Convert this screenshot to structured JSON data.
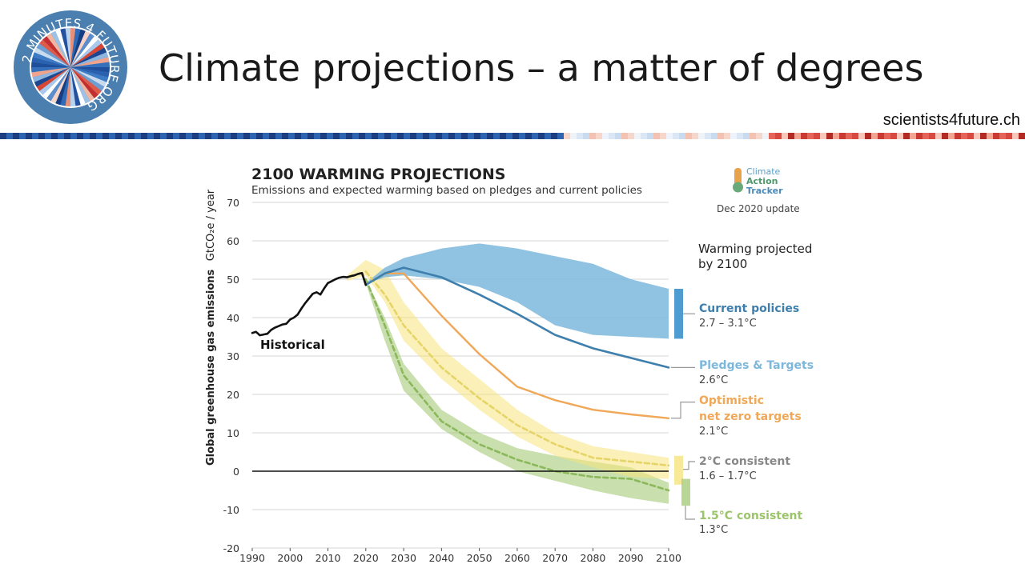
{
  "slide": {
    "title": "Climate projections – a matter of degrees",
    "site": "scientists4future.ch",
    "logo_text": "2 MINUTES 4 FUTURE.ORG"
  },
  "colors": {
    "historical": "#111111",
    "current": "#3e7fad",
    "pledges": "#7db7dc",
    "optimistic": "#f0a858",
    "two_deg": "#f5e47d",
    "two_deg_line": "#e9d86a",
    "one_five": "#9cc46a",
    "label_grey": "#888888",
    "label_dark": "#333333"
  },
  "chart_data": {
    "type": "area",
    "title": "2100 WARMING PROJECTIONS",
    "subtitle": "Emissions and expected warming based on pledges and current policies",
    "brand": [
      "Climate",
      "Action",
      "Tracker"
    ],
    "update": "Dec 2020 update",
    "ylabel": "Global greenhouse gas emissions",
    "yunit": "GtCO₂e / year",
    "xlim": [
      1990,
      2100
    ],
    "ylim": [
      -20,
      70
    ],
    "xticks": [
      1990,
      2000,
      2010,
      2020,
      2030,
      2040,
      2050,
      2060,
      2070,
      2080,
      2090,
      2100
    ],
    "yticks": [
      70,
      60,
      50,
      40,
      30,
      20,
      10,
      0,
      -10,
      -20
    ],
    "grid": true,
    "legend_title": "Warming projected by 2100",
    "historical": {
      "name": "Historical",
      "x": [
        1990,
        1991,
        1992,
        1993,
        1994,
        1995,
        1996,
        1997,
        1998,
        1999,
        2000,
        2001,
        2002,
        2003,
        2004,
        2005,
        2006,
        2007,
        2008,
        2009,
        2010,
        2011,
        2012,
        2013,
        2014,
        2015,
        2016,
        2017,
        2018,
        2019,
        2020
      ],
      "y": [
        36,
        36.3,
        35.4,
        35.6,
        35.8,
        36.8,
        37.4,
        37.8,
        38.2,
        38.4,
        39.5,
        40.0,
        40.8,
        42.4,
        43.8,
        45.0,
        46.2,
        46.6,
        46.0,
        47.6,
        49.0,
        49.5,
        50.0,
        50.4,
        50.6,
        50.5,
        50.8,
        51.0,
        51.4,
        51.6,
        48.5
      ]
    },
    "current_policies": {
      "name": "Current policies",
      "range": "2.7 – 3.1°C",
      "upper": {
        "x": [
          2020,
          2025,
          2030,
          2040,
          2050,
          2060,
          2070,
          2080,
          2090,
          2100
        ],
        "y": [
          49,
          53,
          55.5,
          58,
          59.3,
          58,
          56,
          54,
          50,
          47.5
        ]
      },
      "lower": {
        "x": [
          2020,
          2025,
          2030,
          2040,
          2050,
          2060,
          2070,
          2080,
          2090,
          2100
        ],
        "y": [
          48.8,
          50.5,
          51,
          50,
          48,
          44,
          38,
          35.5,
          35,
          34.5
        ]
      }
    },
    "pledges_targets": {
      "name": "Pledges & Targets",
      "range": "2.6°C",
      "x": [
        2020,
        2025,
        2030,
        2040,
        2050,
        2060,
        2070,
        2080,
        2090,
        2100
      ],
      "y": [
        48.5,
        51.5,
        53,
        50.5,
        46,
        41,
        35.5,
        32,
        29.5,
        27
      ]
    },
    "optimistic_net_zero": {
      "name": "Optimistic net zero targets",
      "range": "2.1°C",
      "x": [
        2020,
        2025,
        2030,
        2035,
        2040,
        2050,
        2060,
        2070,
        2080,
        2090,
        2100
      ],
      "y": [
        48.5,
        51.5,
        51.5,
        46,
        40.5,
        30.5,
        22,
        18.5,
        16,
        14.8,
        13.8
      ]
    },
    "two_degree": {
      "name": "2°C consistent",
      "range": "1.6 – 1.7°C",
      "upper": {
        "x": [
          2015,
          2020,
          2025,
          2030,
          2040,
          2050,
          2060,
          2070,
          2080,
          2090,
          2100
        ],
        "y": [
          51,
          55,
          52.5,
          44,
          32,
          24,
          16,
          10,
          6.5,
          5,
          3.5
        ]
      },
      "lower": {
        "x": [
          2015,
          2020,
          2025,
          2030,
          2040,
          2050,
          2060,
          2070,
          2080,
          2090,
          2100
        ],
        "y": [
          49.5,
          51,
          44,
          34,
          24,
          16,
          9,
          4,
          1,
          -1.5,
          -2
        ]
      },
      "median": {
        "x": [
          2020,
          2025,
          2030,
          2040,
          2050,
          2060,
          2070,
          2080,
          2090,
          2100
        ],
        "y": [
          52,
          46,
          38,
          27,
          19,
          12,
          7,
          3.5,
          2.5,
          1.5
        ]
      }
    },
    "one_five_degree": {
      "name": "1.5°C consistent",
      "range": "1.3°C",
      "upper": {
        "x": [
          2020,
          2025,
          2030,
          2040,
          2050,
          2060,
          2070,
          2080,
          2090,
          2100
        ],
        "y": [
          50,
          40,
          28,
          16,
          10,
          6,
          4,
          2.5,
          1,
          -3
        ]
      },
      "lower": {
        "x": [
          2020,
          2025,
          2030,
          2040,
          2050,
          2060,
          2070,
          2080,
          2090,
          2100
        ],
        "y": [
          49,
          34,
          21,
          11,
          5,
          0,
          -2.5,
          -5,
          -7,
          -8.5
        ]
      },
      "median": {
        "x": [
          2020,
          2025,
          2030,
          2040,
          2050,
          2060,
          2070,
          2080,
          2090,
          2100
        ],
        "y": [
          50,
          38,
          25,
          13,
          7,
          3,
          0,
          -1.5,
          -2,
          -5
        ]
      }
    },
    "range_bars": {
      "current": [
        34.5,
        47.5
      ],
      "two_degree": [
        -3.5,
        4
      ],
      "one_five": [
        -9,
        -2
      ]
    }
  }
}
